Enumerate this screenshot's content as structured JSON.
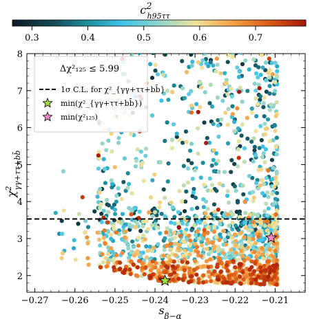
{
  "chart_data": {
    "type": "scatter",
    "xlabel": "s_{β−α}",
    "xlabel_main": "s",
    "xlabel_sub": "β−α",
    "ylabel": "χ²_{γγ+ττ+bb̄}",
    "ylabel_main": "χ",
    "ylabel_sup": "2",
    "ylabel_sub": "γγ+ττ+bb̄",
    "xlim": [
      -0.272,
      -0.2025
    ],
    "ylim": [
      1.55,
      8.0
    ],
    "xticks": [
      -0.27,
      -0.26,
      -0.25,
      -0.24,
      -0.23,
      -0.22,
      -0.21
    ],
    "xtick_labels": [
      "−0.27",
      "−0.26",
      "−0.25",
      "−0.24",
      "−0.23",
      "−0.22",
      "−0.21"
    ],
    "yticks": [
      2,
      3,
      4,
      5,
      6,
      7,
      8
    ],
    "ytick_labels": [
      "2",
      "3",
      "4",
      "5",
      "6",
      "7",
      "8"
    ],
    "colorbar": {
      "label_main": "c",
      "label_sup": "2",
      "label_sub": "h95ττ",
      "range": [
        0.265,
        0.79
      ],
      "ticks": [
        0.3,
        0.4,
        0.5,
        0.6,
        0.7
      ],
      "tick_labels": [
        "0.3",
        "0.4",
        "0.5",
        "0.6",
        "0.7"
      ],
      "colormap": [
        "#0d1a26",
        "#14454f",
        "#1d8b99",
        "#3fc4ea",
        "#8fd5cc",
        "#f1e39a",
        "#f5a144",
        "#db5b17",
        "#a51706"
      ]
    },
    "hline": {
      "y": 3.53,
      "label": "1σ C.L. for χ²_{γγ+ττ+bb̄}",
      "style": "dashed",
      "color": "#000000"
    },
    "legend": {
      "title": "Δχ²₁₂₅ ≤ 5.99",
      "position": "upper-left",
      "entries": [
        {
          "label": "1σ C.L. for  χ²_{γγ+ττ+bb̄}",
          "marker": "dashed-line"
        },
        {
          "label": "min(χ²_{γγ+ττ+bb̄})",
          "marker": "star",
          "color": "#9be03c"
        },
        {
          "label": "min(χ²₁₂₅)",
          "marker": "star",
          "color": "#f08ccb"
        }
      ]
    },
    "special_points": [
      {
        "name": "min-chi2-gg-tt-bb",
        "x": -0.2375,
        "y": 1.86,
        "color": "#9be03c"
      },
      {
        "name": "min-chi2-125",
        "x": -0.211,
        "y": 3.02,
        "color": "#f08ccb"
      }
    ],
    "scatter": {
      "description": "dense cloud of scan points",
      "x_range": [
        -0.265,
        -0.209
      ],
      "y_range": [
        1.7,
        8.0
      ],
      "approx_points": 1800
    }
  }
}
